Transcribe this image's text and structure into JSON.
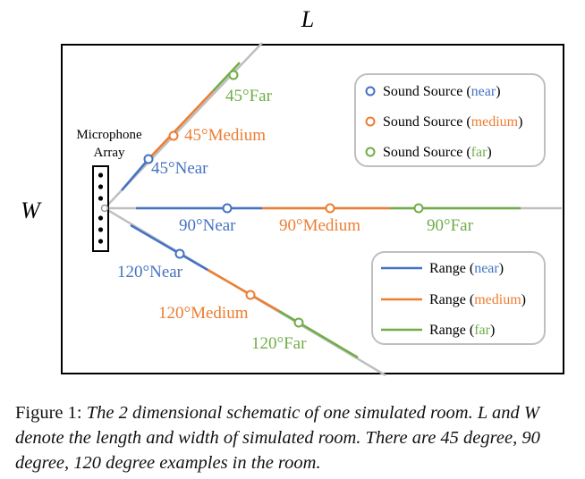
{
  "diagram": {
    "dim_length": "L",
    "dim_width": "W",
    "mic_label_line1": "Microphone",
    "mic_label_line2": "Array",
    "colors": {
      "near": "#4472C4",
      "medium": "#ED7D31",
      "far": "#70AD47",
      "gray": "#BFBFBF"
    },
    "sources": [
      {
        "text": "45°Far",
        "tier": "far"
      },
      {
        "text": "45°Medium",
        "tier": "medium"
      },
      {
        "text": "45°Near",
        "tier": "near"
      },
      {
        "text": "90°Near",
        "tier": "near"
      },
      {
        "text": "90°Medium",
        "tier": "medium"
      },
      {
        "text": "90°Far",
        "tier": "far"
      },
      {
        "text": "120°Near",
        "tier": "near"
      },
      {
        "text": "120°Medium",
        "tier": "medium"
      },
      {
        "text": "120°Far",
        "tier": "far"
      }
    ],
    "legend_sources": {
      "prefix": "Sound Source (",
      "suffix": ")",
      "items": [
        {
          "word": "near",
          "tier": "near"
        },
        {
          "word": "medium",
          "tier": "medium"
        },
        {
          "word": "far",
          "tier": "far"
        }
      ]
    },
    "legend_ranges": {
      "prefix": "Range (",
      "suffix": ")",
      "items": [
        {
          "word": "near",
          "tier": "near"
        },
        {
          "word": "medium",
          "tier": "medium"
        },
        {
          "word": "far",
          "tier": "far"
        }
      ]
    }
  },
  "caption": {
    "figure_label": "Figure 1:",
    "text": "The 2 dimensional schematic of one simulated room. L and W denote the length and width of simulated room. There are 45 degree, 90 degree, 120 degree examples in the room."
  }
}
